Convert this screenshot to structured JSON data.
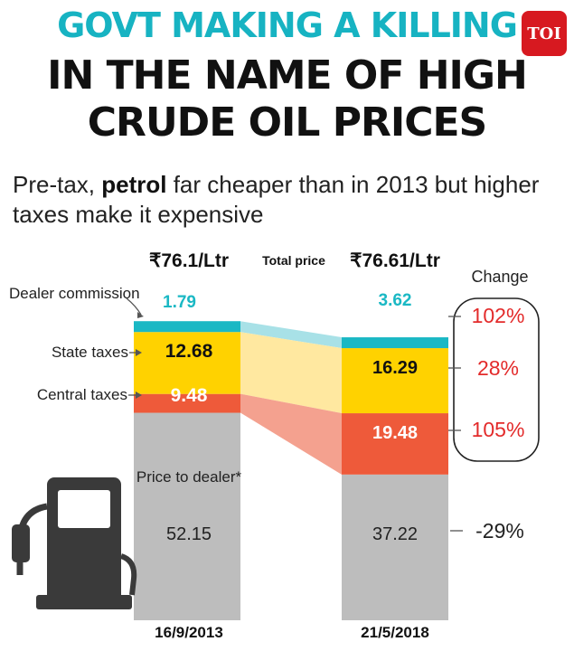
{
  "header": {
    "line1": "GOVT MAKING A KILLING",
    "line2": "IN THE NAME OF HIGH",
    "line3": "CRUDE OIL PRICES",
    "logo": "TOI",
    "subtitle_pre": "Pre-tax, ",
    "subtitle_bold": "petrol",
    "subtitle_post": " far cheaper than in 2013 but higher taxes make it expensive"
  },
  "colors": {
    "dealer_commission": "#1ab8c4",
    "state_taxes": "#ffd200",
    "central_taxes": "#ee5a3a",
    "price_to_dealer": "#bdbdbd",
    "change": "#e32b2b",
    "headline_accent": "#17b3c2",
    "logo": "#d71920"
  },
  "icons": [
    "fuel-pump-icon"
  ],
  "chart_data": {
    "type": "bar",
    "stacked": true,
    "categories": [
      "16/9/2013",
      "21/5/2018"
    ],
    "totals": [
      "₹76.1/Ltr",
      "₹76.61/Ltr"
    ],
    "total_label": "Total price",
    "change_label": "Change",
    "series": [
      {
        "name": "Price to dealer*",
        "values": [
          52.15,
          37.22
        ],
        "labels": [
          "52.15",
          "37.22"
        ],
        "change": "-29%"
      },
      {
        "name": "Central taxes",
        "values": [
          9.48,
          19.48
        ],
        "labels": [
          "9.48",
          "19.48"
        ],
        "change": "105%"
      },
      {
        "name": "State taxes",
        "values": [
          12.68,
          16.29
        ],
        "labels": [
          "12.68",
          "16.29"
        ],
        "change": "28%"
      },
      {
        "name": "Dealer commission",
        "values": [
          1.79,
          3.62
        ],
        "labels": [
          "1.79",
          "3.62"
        ],
        "change": "102%"
      }
    ]
  }
}
